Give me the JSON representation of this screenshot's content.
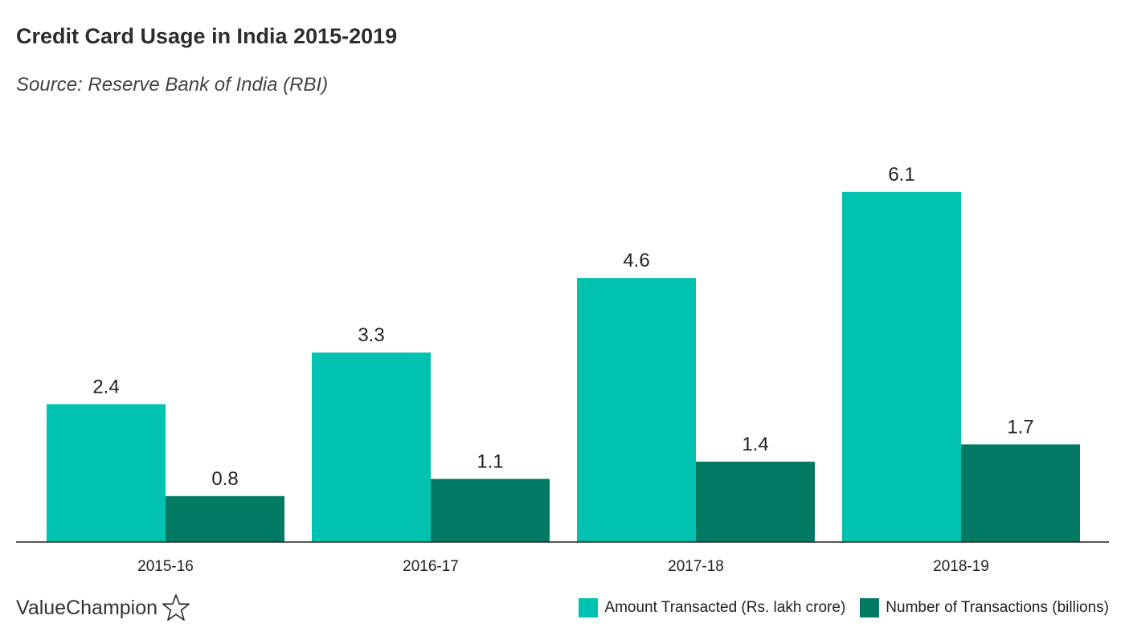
{
  "chart_data": {
    "type": "bar",
    "title": "Credit Card Usage in India 2015-2019",
    "subtitle": "Source: Reserve Bank of India (RBI)",
    "categories": [
      "2015-16",
      "2016-17",
      "2017-18",
      "2018-19"
    ],
    "series": [
      {
        "name": "Amount Transacted (Rs. lakh crore)",
        "values": [
          2.4,
          3.3,
          4.6,
          6.1
        ],
        "color": "#00c2b0"
      },
      {
        "name": "Number of Transactions (billions)",
        "values": [
          0.8,
          1.1,
          1.4,
          1.7
        ],
        "color": "#007a63"
      }
    ],
    "data_labels": [
      [
        "2.4",
        "3.3",
        "4.6",
        "6.1"
      ],
      [
        "0.8",
        "1.1",
        "1.4",
        "1.7"
      ]
    ],
    "ylim": [
      0,
      7
    ],
    "grid": false,
    "legend_position": "bottom-right",
    "xlabel": "",
    "ylabel": ""
  },
  "branding": {
    "logo_text": "ValueChampion",
    "logo_icon": "star-outline-icon"
  },
  "colors": {
    "axis": "#222222",
    "text": "#333333"
  }
}
